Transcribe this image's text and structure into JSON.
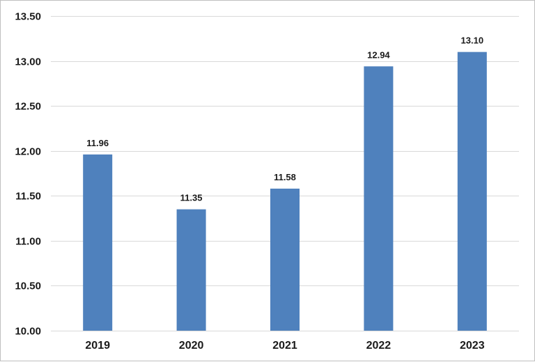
{
  "chart_data": {
    "type": "bar",
    "title": "",
    "xlabel": "",
    "ylabel": "",
    "categories": [
      "2019",
      "2020",
      "2021",
      "2022",
      "2023"
    ],
    "values": [
      11.96,
      11.35,
      11.58,
      12.94,
      13.1
    ],
    "data_labels": [
      "11.96",
      "11.35",
      "11.58",
      "12.94",
      "13.10"
    ],
    "ylim": [
      10.0,
      13.5
    ],
    "yticks": [
      10.0,
      10.5,
      11.0,
      11.5,
      12.0,
      12.5,
      13.0,
      13.5
    ],
    "ytick_labels": [
      "10.00",
      "10.50",
      "11.00",
      "11.50",
      "12.00",
      "12.50",
      "13.00",
      "13.50"
    ],
    "grid": true,
    "legend": "none",
    "bar_color": "#4f81bd"
  }
}
